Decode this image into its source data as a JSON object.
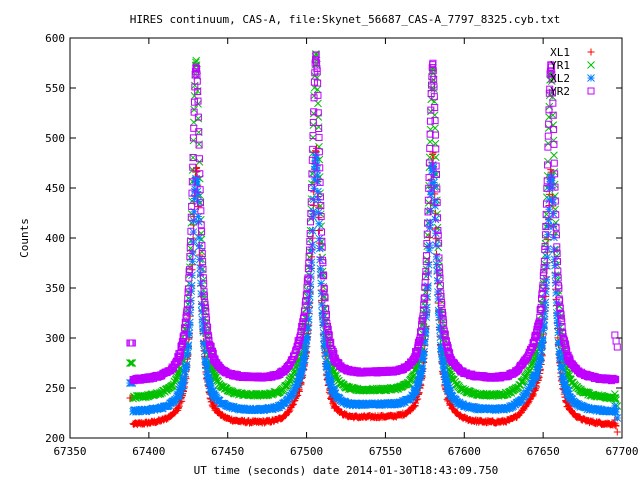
{
  "chart_data": {
    "type": "scatter",
    "title": "HIRES continuum, CAS-A, file:Skynet_56687_CAS-A_7797_8325.cyb.txt",
    "xlabel": "UT time (seconds) date 2014-01-30T18:43:09.750",
    "ylabel": "Counts",
    "xlim": [
      67350,
      67700
    ],
    "ylim": [
      200,
      600
    ],
    "xticks": [
      67350,
      67400,
      67450,
      67500,
      67550,
      67600,
      67650,
      67700
    ],
    "yticks": [
      200,
      250,
      300,
      350,
      400,
      450,
      500,
      550,
      600
    ],
    "grid": false,
    "legend_position": "top-right",
    "x_range_data": [
      67388,
      67697
    ],
    "peaks": [
      {
        "x": 67430,
        "heights": {
          "XL1": 470,
          "YR1": 575,
          "XL2": 460,
          "YR2": 570
        }
      },
      {
        "x": 67506,
        "heights": {
          "XL1": 475,
          "YR1": 568,
          "XL2": 465,
          "YR2": 568
        }
      },
      {
        "x": 67580,
        "heights": {
          "XL1": 480,
          "YR1": 565,
          "XL2": 470,
          "YR2": 570
        }
      },
      {
        "x": 67655,
        "heights": {
          "XL1": 460,
          "YR1": 560,
          "XL2": 455,
          "YR2": 565
        }
      }
    ],
    "series": [
      {
        "name": "XL1",
        "color": "#ff0000",
        "marker": "plus",
        "baseline": 212,
        "start_value": 240,
        "end_value": 212
      },
      {
        "name": "YR1",
        "color": "#00c000",
        "marker": "cross",
        "baseline": 238,
        "start_value": 275,
        "end_value": 238
      },
      {
        "name": "XL2",
        "color": "#0080ff",
        "marker": "asterisk",
        "baseline": 225,
        "start_value": 255,
        "end_value": 226
      },
      {
        "name": "YR2",
        "color": "#c000ff",
        "marker": "square",
        "baseline": 256,
        "start_value": 295,
        "end_value": 297
      }
    ]
  }
}
